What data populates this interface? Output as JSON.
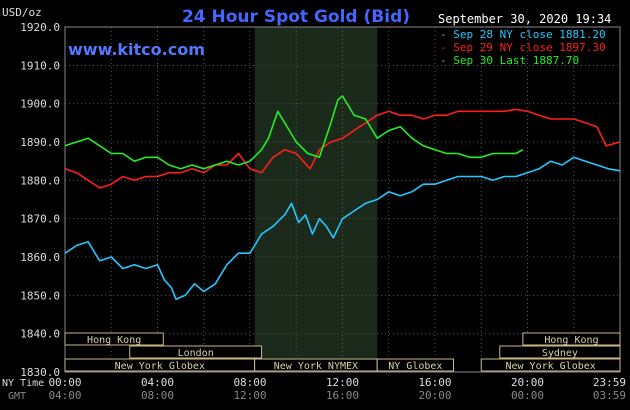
{
  "chart_data": {
    "type": "line",
    "title": "24 Hour Spot Gold (Bid)",
    "watermark": "www.kitco.com",
    "ylabel": "USD/oz",
    "datetime": "September 30, 2020 19:34",
    "ylim": [
      1830,
      1920
    ],
    "yticks": [
      "1920.0",
      "1910.0",
      "1900.0",
      "1890.0",
      "1880.0",
      "1870.0",
      "1860.0",
      "1850.0",
      "1840.0",
      "1830.0"
    ],
    "x_hours": [
      0,
      4,
      8,
      12,
      16,
      20,
      24
    ],
    "ny_time_label": "NY Time",
    "gmt_label": "GMT",
    "ny_ticks": [
      "00:00",
      "04:00",
      "08:00",
      "12:00",
      "16:00",
      "20:00",
      "23:59"
    ],
    "gmt_ticks": [
      "04:00",
      "08:00",
      "12:00",
      "16:00",
      "20:00",
      "00:00",
      "03:59"
    ],
    "shade_hours": [
      8.2,
      13.5
    ],
    "grid": true,
    "legend_position": "top-right",
    "series": [
      {
        "name": "Sep 28 NY close 1881.20",
        "color": "#22c8ff",
        "points": [
          [
            0,
            1861
          ],
          [
            0.5,
            1863
          ],
          [
            1,
            1864
          ],
          [
            1.5,
            1859
          ],
          [
            2,
            1860
          ],
          [
            2.5,
            1857
          ],
          [
            3,
            1858
          ],
          [
            3.5,
            1857
          ],
          [
            4,
            1858
          ],
          [
            4.3,
            1854
          ],
          [
            4.6,
            1852
          ],
          [
            4.8,
            1849
          ],
          [
            5.2,
            1850
          ],
          [
            5.6,
            1853
          ],
          [
            6,
            1851
          ],
          [
            6.5,
            1853
          ],
          [
            7,
            1858
          ],
          [
            7.5,
            1861
          ],
          [
            8,
            1861
          ],
          [
            8.5,
            1866
          ],
          [
            9,
            1868
          ],
          [
            9.5,
            1871
          ],
          [
            9.8,
            1874
          ],
          [
            10.1,
            1869
          ],
          [
            10.4,
            1871
          ],
          [
            10.7,
            1866
          ],
          [
            11,
            1870
          ],
          [
            11.3,
            1868
          ],
          [
            11.6,
            1865
          ],
          [
            12,
            1870
          ],
          [
            12.5,
            1872
          ],
          [
            13,
            1874
          ],
          [
            13.5,
            1875
          ],
          [
            14,
            1877
          ],
          [
            14.5,
            1876
          ],
          [
            15,
            1877
          ],
          [
            15.5,
            1879
          ],
          [
            16,
            1879
          ],
          [
            16.5,
            1880
          ],
          [
            17,
            1881
          ],
          [
            17.5,
            1881
          ],
          [
            18,
            1881
          ],
          [
            18.5,
            1880
          ],
          [
            19,
            1881
          ],
          [
            19.5,
            1881
          ],
          [
            20,
            1882
          ],
          [
            20.5,
            1883
          ],
          [
            21,
            1885
          ],
          [
            21.5,
            1884
          ],
          [
            22,
            1886
          ],
          [
            22.5,
            1885
          ],
          [
            23,
            1884
          ],
          [
            23.5,
            1883
          ],
          [
            24,
            1882.5
          ]
        ]
      },
      {
        "name": "Sep 29 NY close 1897.30",
        "color": "#ff1e1e",
        "points": [
          [
            0,
            1883
          ],
          [
            0.5,
            1882
          ],
          [
            1,
            1880
          ],
          [
            1.5,
            1878
          ],
          [
            2,
            1879
          ],
          [
            2.5,
            1881
          ],
          [
            3,
            1880
          ],
          [
            3.5,
            1881
          ],
          [
            4,
            1881
          ],
          [
            4.5,
            1882
          ],
          [
            5,
            1882
          ],
          [
            5.5,
            1883
          ],
          [
            6,
            1882
          ],
          [
            6.5,
            1884
          ],
          [
            7,
            1884
          ],
          [
            7.5,
            1887
          ],
          [
            8,
            1883
          ],
          [
            8.5,
            1882
          ],
          [
            9,
            1886
          ],
          [
            9.5,
            1888
          ],
          [
            10,
            1887
          ],
          [
            10.3,
            1885
          ],
          [
            10.6,
            1883
          ],
          [
            11,
            1888
          ],
          [
            11.5,
            1890
          ],
          [
            12,
            1891
          ],
          [
            12.5,
            1893
          ],
          [
            13,
            1895
          ],
          [
            13.5,
            1897
          ],
          [
            14,
            1898
          ],
          [
            14.5,
            1897
          ],
          [
            15,
            1897
          ],
          [
            15.5,
            1896
          ],
          [
            16,
            1897
          ],
          [
            16.5,
            1897
          ],
          [
            17,
            1898
          ],
          [
            17.5,
            1898
          ],
          [
            18,
            1898
          ],
          [
            18.5,
            1898
          ],
          [
            19,
            1898
          ],
          [
            19.5,
            1898.5
          ],
          [
            20,
            1898
          ],
          [
            20.5,
            1897
          ],
          [
            21,
            1896
          ],
          [
            21.5,
            1896
          ],
          [
            22,
            1896
          ],
          [
            22.5,
            1895
          ],
          [
            23,
            1894
          ],
          [
            23.4,
            1889
          ],
          [
            24,
            1890
          ]
        ]
      },
      {
        "name": "Sep 30 Last 1887.70",
        "color": "#22ee22",
        "points": [
          [
            0,
            1889
          ],
          [
            0.5,
            1890
          ],
          [
            1,
            1891
          ],
          [
            1.5,
            1889
          ],
          [
            2,
            1887
          ],
          [
            2.5,
            1887
          ],
          [
            3,
            1885
          ],
          [
            3.5,
            1886
          ],
          [
            4,
            1886
          ],
          [
            4.5,
            1884
          ],
          [
            5,
            1883
          ],
          [
            5.5,
            1884
          ],
          [
            6,
            1883
          ],
          [
            6.5,
            1884
          ],
          [
            7,
            1885
          ],
          [
            7.5,
            1884
          ],
          [
            8,
            1885
          ],
          [
            8.5,
            1888
          ],
          [
            8.8,
            1891
          ],
          [
            9.2,
            1898
          ],
          [
            9.5,
            1895
          ],
          [
            10,
            1890
          ],
          [
            10.5,
            1887
          ],
          [
            11,
            1886
          ],
          [
            11.5,
            1895
          ],
          [
            11.8,
            1901
          ],
          [
            12,
            1902
          ],
          [
            12.5,
            1897
          ],
          [
            13,
            1896
          ],
          [
            13.5,
            1891
          ],
          [
            14,
            1893
          ],
          [
            14.5,
            1894
          ],
          [
            15,
            1891
          ],
          [
            15.5,
            1889
          ],
          [
            16,
            1888
          ],
          [
            16.5,
            1887
          ],
          [
            17,
            1887
          ],
          [
            17.5,
            1886
          ],
          [
            18,
            1886
          ],
          [
            18.5,
            1887
          ],
          [
            19,
            1887
          ],
          [
            19.5,
            1887
          ],
          [
            19.8,
            1888
          ]
        ]
      }
    ],
    "session_bars": [
      {
        "label": "Hong Kong",
        "start": 0,
        "end": 4.25,
        "row": 0
      },
      {
        "label": "London",
        "start": 2.8,
        "end": 8.5,
        "row": 1
      },
      {
        "label": "New York Globex",
        "start": 0,
        "end": 8.2,
        "row": 2
      },
      {
        "label": "New York NYMEX",
        "start": 8.2,
        "end": 13.5,
        "row": 2
      },
      {
        "label": "NY Globex",
        "start": 13.5,
        "end": 16.8,
        "row": 2
      },
      {
        "label": "Hong Kong",
        "start": 19.8,
        "end": 24,
        "row": 0
      },
      {
        "label": "Sydney",
        "start": 18.8,
        "end": 24,
        "row": 1
      },
      {
        "label": "New York Globex",
        "start": 18,
        "end": 24,
        "row": 2
      }
    ]
  }
}
